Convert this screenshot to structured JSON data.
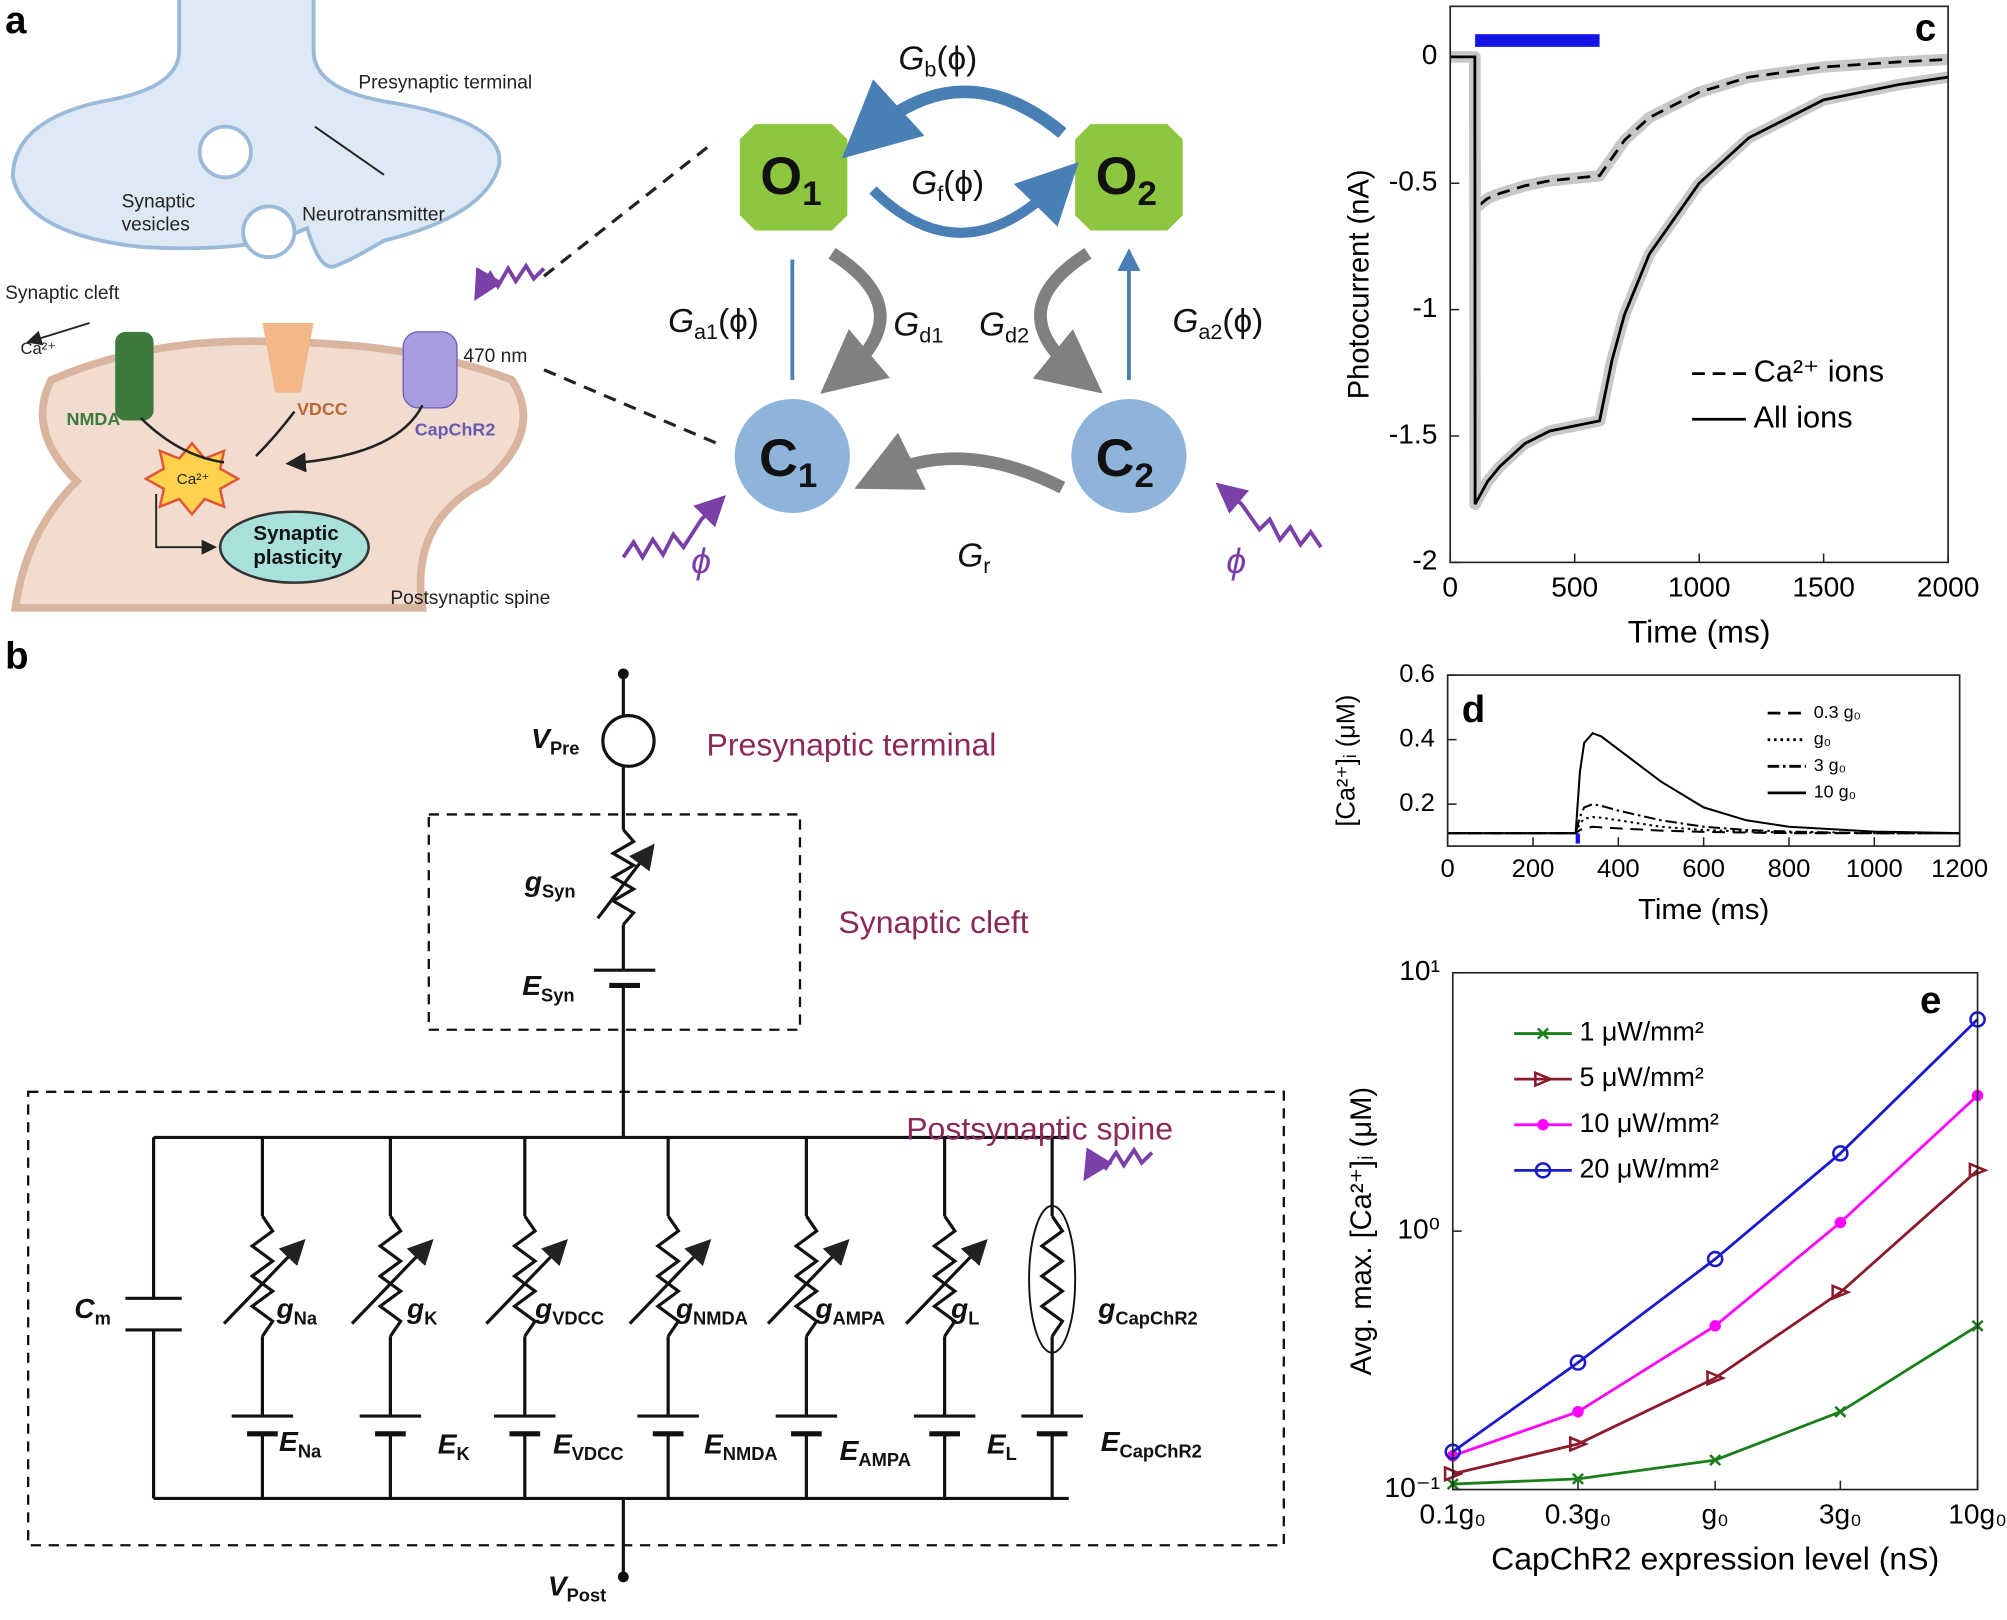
{
  "panel_labels": [
    "a",
    "b",
    "c",
    "d",
    "e"
  ],
  "cartoon": {
    "labels": [
      [
        "Presynaptic terminal"
      ],
      [
        "Synaptic",
        "vesicles"
      ],
      [
        "Neurotransmitter"
      ],
      [
        "Synaptic cleft"
      ],
      [
        "Ca²⁺"
      ],
      [
        "NMDA"
      ],
      [
        "VDCC"
      ],
      [
        "CapChR2"
      ],
      [
        "470 nm"
      ],
      [
        "Ca²⁺"
      ],
      [
        "Synaptic",
        "plasticity"
      ],
      [
        "Postsynaptic spine"
      ]
    ]
  },
  "state_model": {
    "states": [
      {
        "main": "O",
        "sub": "1"
      },
      {
        "main": "O",
        "sub": "2"
      },
      {
        "main": "C",
        "sub": "1"
      },
      {
        "main": "C",
        "sub": "2"
      }
    ],
    "rates": [
      {
        "main": "G",
        "sub": "b",
        "arg": "(ϕ)"
      },
      {
        "main": "G",
        "sub": "f",
        "arg": "(ϕ)"
      },
      {
        "main": "G",
        "sub": "a1",
        "arg": "(ϕ)"
      },
      {
        "main": "G",
        "sub": "d1"
      },
      {
        "main": "G",
        "sub": "d2"
      },
      {
        "main": "G",
        "sub": "a2",
        "arg": "(ϕ)"
      },
      {
        "main": "G",
        "sub": "r"
      }
    ],
    "light": [
      "ϕ",
      "ϕ"
    ]
  },
  "circuit": {
    "regions": [
      "Presynaptic terminal",
      "Synaptic cleft",
      "Postsynaptic spine"
    ],
    "labels": [
      {
        "main": "V",
        "sub": "Pre"
      },
      {
        "main": "g",
        "sub": "Syn"
      },
      {
        "main": "E",
        "sub": "Syn"
      },
      {
        "main": "C",
        "sub": "m"
      },
      {
        "main": "g",
        "sub": "Na"
      },
      {
        "main": "g",
        "sub": "K"
      },
      {
        "main": "g",
        "sub": "VDCC"
      },
      {
        "main": "g",
        "sub": "NMDA"
      },
      {
        "main": "g",
        "sub": "AMPA"
      },
      {
        "main": "g",
        "sub": "L"
      },
      {
        "main": "g",
        "sub": "CapChR2"
      },
      {
        "main": "E",
        "sub": "Na"
      },
      {
        "main": "E",
        "sub": "K"
      },
      {
        "main": "E",
        "sub": "VDCC"
      },
      {
        "main": "E",
        "sub": "NMDA"
      },
      {
        "main": "E",
        "sub": "AMPA"
      },
      {
        "main": "E",
        "sub": "L"
      },
      {
        "main": "E",
        "sub": "CapChR2"
      },
      {
        "main": "V",
        "sub": "Post"
      }
    ]
  },
  "chart_data": [
    {
      "type": "line",
      "xlabel": "Time (ms)",
      "ylabel": "Photocurrent (nA)",
      "xlim": [
        0,
        2000
      ],
      "ylim": [
        -2,
        0.2
      ],
      "xticks": [
        0,
        500,
        1000,
        1500,
        2000
      ],
      "yticks": [
        -2,
        -1.5,
        -1,
        -0.5,
        0
      ],
      "legend": "lower right",
      "shaded": true,
      "light_on": [
        100,
        600
      ],
      "light_color": "#1414e6",
      "x": [
        0,
        99,
        100,
        150,
        200,
        300,
        400,
        500,
        600,
        650,
        700,
        800,
        1000,
        1200,
        1500,
        1800,
        2000
      ],
      "series": [
        {
          "name": "Ca²⁺ ions",
          "color": "#000000",
          "dash": "dashed",
          "values": [
            0,
            0,
            -0.6,
            -0.56,
            -0.54,
            -0.51,
            -0.49,
            -0.48,
            -0.47,
            -0.4,
            -0.33,
            -0.24,
            -0.14,
            -0.08,
            -0.04,
            -0.02,
            -0.01
          ]
        },
        {
          "name": "All ions",
          "color": "#000000",
          "dash": "solid",
          "values": [
            0,
            0,
            -1.77,
            -1.68,
            -1.62,
            -1.53,
            -1.48,
            -1.46,
            -1.44,
            -1.2,
            -1.02,
            -0.78,
            -0.5,
            -0.32,
            -0.17,
            -0.11,
            -0.08
          ]
        }
      ]
    },
    {
      "type": "line",
      "xlabel": "Time (ms)",
      "ylabel": "[Ca²⁺]ᵢ (μM)",
      "xlim": [
        0,
        1200
      ],
      "ylim": [
        0.07,
        0.6
      ],
      "xticks": [
        0,
        200,
        400,
        600,
        800,
        1000,
        1200
      ],
      "yticks": [
        0.2,
        0.4,
        0.6
      ],
      "legend": "upper right",
      "light_on": [
        300,
        310
      ],
      "light_color": "#1414e6",
      "x": [
        0,
        300,
        310,
        320,
        340,
        360,
        400,
        500,
        600,
        700,
        800,
        1000,
        1200
      ],
      "series": [
        {
          "name": "0.3 g₀",
          "color": "#000000",
          "dash": "dashed",
          "values": [
            0.11,
            0.11,
            0.12,
            0.125,
            0.13,
            0.128,
            0.125,
            0.118,
            0.114,
            0.112,
            0.11,
            0.11,
            0.11
          ]
        },
        {
          "name": "g₀",
          "color": "#000000",
          "dash": "dotted",
          "values": [
            0.11,
            0.11,
            0.14,
            0.155,
            0.16,
            0.158,
            0.15,
            0.13,
            0.12,
            0.115,
            0.112,
            0.11,
            0.11
          ]
        },
        {
          "name": "3 g₀",
          "color": "#000000",
          "dash": "dashdot",
          "values": [
            0.11,
            0.11,
            0.16,
            0.19,
            0.2,
            0.195,
            0.18,
            0.15,
            0.13,
            0.12,
            0.115,
            0.11,
            0.11
          ]
        },
        {
          "name": "10 g₀",
          "color": "#000000",
          "dash": "solid",
          "values": [
            0.11,
            0.11,
            0.3,
            0.39,
            0.42,
            0.41,
            0.37,
            0.27,
            0.19,
            0.15,
            0.13,
            0.115,
            0.11
          ]
        }
      ]
    },
    {
      "type": "line",
      "xlabel": "CapChR2 expression level (nS)",
      "ylabel": "Avg. max. [Ca²⁺]ᵢ (μM)",
      "xlog": true,
      "ylog": true,
      "xlim": [
        0.1,
        10
      ],
      "ylim": [
        0.1,
        10
      ],
      "xticks": [
        {
          "value": 0.1,
          "label": "0.1g₀"
        },
        {
          "value": 0.3,
          "label": "0.3g₀"
        },
        {
          "value": 1,
          "label": "g₀"
        },
        {
          "value": 3,
          "label": "3g₀"
        },
        {
          "value": 10,
          "label": "10g₀"
        }
      ],
      "yticks": [
        {
          "value": 0.1,
          "label": "10⁻¹"
        },
        {
          "value": 1,
          "label": "10⁰"
        },
        {
          "value": 10,
          "label": "10¹"
        }
      ],
      "legend": "upper left",
      "x": [
        0.1,
        0.3,
        1,
        3,
        10
      ],
      "series": [
        {
          "name": "1 μW/mm²",
          "color": "#1a7f1a",
          "marker": "x",
          "values": [
            0.105,
            0.11,
            0.13,
            0.2,
            0.43
          ]
        },
        {
          "name": "5 μW/mm²",
          "color": "#8b1a2b",
          "marker": "triangle",
          "values": [
            0.115,
            0.15,
            0.27,
            0.58,
            1.72
          ]
        },
        {
          "name": "10 μW/mm²",
          "color": "#ff00ff",
          "marker": "dot",
          "values": [
            0.135,
            0.2,
            0.43,
            1.08,
            3.35
          ]
        },
        {
          "name": "20 μW/mm²",
          "color": "#1a1acc",
          "marker": "circle",
          "values": [
            0.14,
            0.31,
            0.78,
            2.0,
            6.6
          ]
        }
      ]
    }
  ]
}
